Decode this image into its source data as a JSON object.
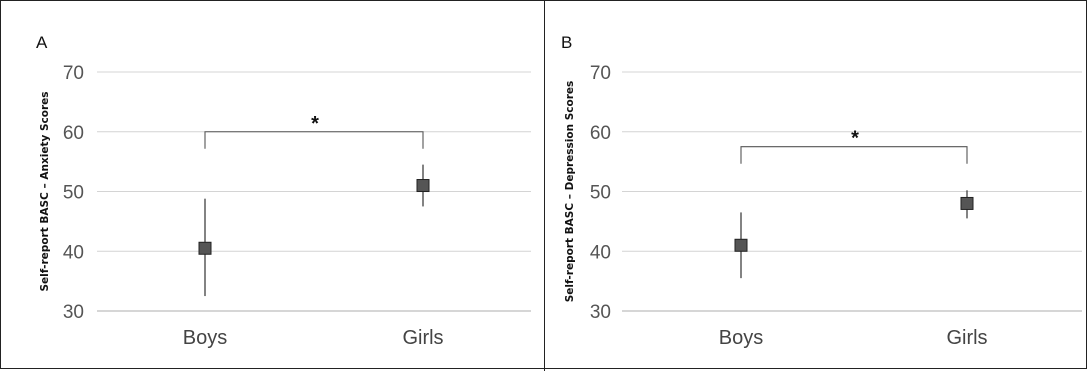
{
  "chart_data": [
    {
      "type": "scatter",
      "panel_label": "A",
      "title": "",
      "xlabel": "",
      "ylabel": "Self-report BASC – Anxiety Scores",
      "categories": [
        "Boys",
        "Girls"
      ],
      "ylim": [
        30,
        70
      ],
      "yticks": [
        30,
        40,
        50,
        60,
        70
      ],
      "grid": true,
      "series": [
        {
          "values": [
            40.5,
            51
          ],
          "lower": [
            32.5,
            47.5
          ],
          "upper": [
            48.8,
            54.5
          ]
        }
      ],
      "significance": {
        "between": [
          "Boys",
          "Girls"
        ],
        "label": "*",
        "y": 60
      }
    },
    {
      "type": "scatter",
      "panel_label": "B",
      "title": "",
      "xlabel": "",
      "ylabel": "Self-report BASC – Depression  Scores",
      "categories": [
        "Boys",
        "Girls"
      ],
      "ylim": [
        30,
        70
      ],
      "yticks": [
        30,
        40,
        50,
        60,
        70
      ],
      "grid": true,
      "series": [
        {
          "values": [
            41,
            48
          ],
          "lower": [
            35.5,
            45.5
          ],
          "upper": [
            46.5,
            50.2
          ]
        }
      ],
      "significance": {
        "between": [
          "Boys",
          "Girls"
        ],
        "label": "*",
        "y": 57.5
      }
    }
  ],
  "colors": {
    "marker": "#555555",
    "grid": "#d4d4d4",
    "error_bar": "#404040"
  }
}
